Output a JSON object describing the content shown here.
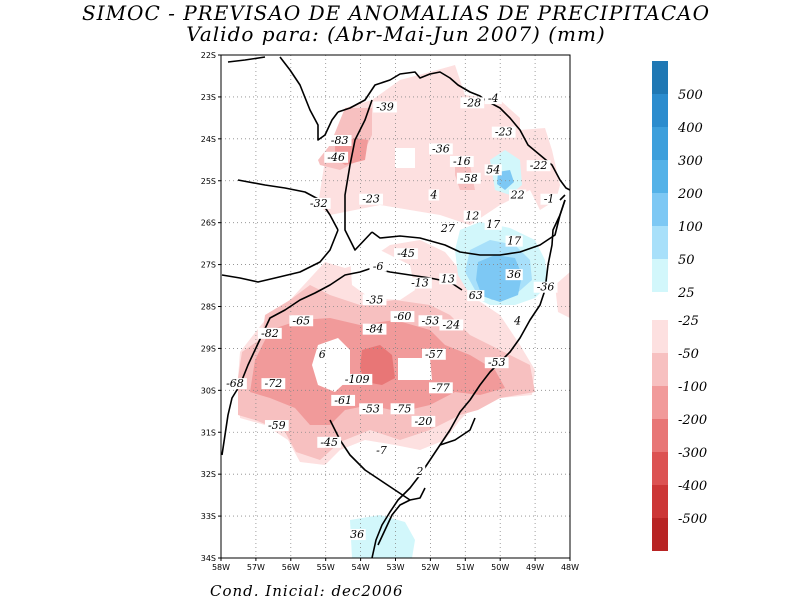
{
  "title_line1": "SIMOC - PREVISAO DE ANOMALIAS DE PRECIPITACAO",
  "title_line2": "Valido para: (Abr-Mai-Jun 2007) (mm)",
  "footer": "Cond. Inicial: dec2006",
  "axes": {
    "lon_labels": [
      "58W",
      "57W",
      "56W",
      "55W",
      "54W",
      "53W",
      "52W",
      "51W",
      "50W",
      "49W",
      "48W"
    ],
    "lat_labels": [
      "22S",
      "23S",
      "24S",
      "25S",
      "26S",
      "27S",
      "28S",
      "29S",
      "30S",
      "31S",
      "32S",
      "33S",
      "34S"
    ]
  },
  "contour_labels": [
    {
      "text": "-39",
      "lon": -53.3,
      "lat": -23.3
    },
    {
      "text": "-28",
      "lon": -50.8,
      "lat": -23.2
    },
    {
      "text": "-4",
      "lon": -50.2,
      "lat": -23.1
    },
    {
      "text": "-23",
      "lon": -49.9,
      "lat": -23.9
    },
    {
      "text": "-83",
      "lon": -54.6,
      "lat": -24.1
    },
    {
      "text": "-36",
      "lon": -51.7,
      "lat": -24.3
    },
    {
      "text": "-46",
      "lon": -54.7,
      "lat": -24.5
    },
    {
      "text": "-16",
      "lon": -51.1,
      "lat": -24.6
    },
    {
      "text": "54",
      "lon": -50.2,
      "lat": -24.8
    },
    {
      "text": "-22",
      "lon": -48.9,
      "lat": -24.7
    },
    {
      "text": "-58",
      "lon": -50.9,
      "lat": -25.0
    },
    {
      "text": "4",
      "lon": -51.9,
      "lat": -25.4
    },
    {
      "text": "22",
      "lon": -49.5,
      "lat": -25.4
    },
    {
      "text": "-32",
      "lon": -55.2,
      "lat": -25.6
    },
    {
      "text": "-23",
      "lon": -53.7,
      "lat": -25.5
    },
    {
      "text": "-1",
      "lon": -48.6,
      "lat": -25.5
    },
    {
      "text": "12",
      "lon": -50.8,
      "lat": -25.9
    },
    {
      "text": "17",
      "lon": -50.2,
      "lat": -26.1
    },
    {
      "text": "27",
      "lon": -51.5,
      "lat": -26.2
    },
    {
      "text": "17",
      "lon": -49.6,
      "lat": -26.5
    },
    {
      "text": "-45",
      "lon": -52.7,
      "lat": -26.8
    },
    {
      "text": "-6",
      "lon": -53.5,
      "lat": -27.1
    },
    {
      "text": "13",
      "lon": -51.5,
      "lat": -27.4
    },
    {
      "text": "-13",
      "lon": -52.3,
      "lat": -27.5
    },
    {
      "text": "36",
      "lon": -49.6,
      "lat": -27.3
    },
    {
      "text": "-36",
      "lon": -48.7,
      "lat": -27.6
    },
    {
      "text": "63",
      "lon": -50.7,
      "lat": -27.8
    },
    {
      "text": "-35",
      "lon": -53.6,
      "lat": -27.9
    },
    {
      "text": "-60",
      "lon": -52.8,
      "lat": -28.3
    },
    {
      "text": "-53",
      "lon": -52.0,
      "lat": -28.4
    },
    {
      "text": "-24",
      "lon": -51.4,
      "lat": -28.5
    },
    {
      "text": "4",
      "lon": -49.5,
      "lat": -28.4
    },
    {
      "text": "-65",
      "lon": -55.7,
      "lat": -28.4
    },
    {
      "text": "-84",
      "lon": -53.6,
      "lat": -28.6
    },
    {
      "text": "-82",
      "lon": -56.6,
      "lat": -28.7
    },
    {
      "text": "6",
      "lon": -55.1,
      "lat": -29.2
    },
    {
      "text": "-57",
      "lon": -51.9,
      "lat": -29.2
    },
    {
      "text": "-53",
      "lon": -50.1,
      "lat": -29.4
    },
    {
      "text": "-109",
      "lon": -54.1,
      "lat": -29.8
    },
    {
      "text": "-68",
      "lon": -57.6,
      "lat": -29.9
    },
    {
      "text": "-72",
      "lon": -56.5,
      "lat": -29.9
    },
    {
      "text": "-77",
      "lon": -51.7,
      "lat": -30.0
    },
    {
      "text": "-61",
      "lon": -54.5,
      "lat": -30.3
    },
    {
      "text": "-53",
      "lon": -53.7,
      "lat": -30.5
    },
    {
      "text": "-75",
      "lon": -52.8,
      "lat": -30.5
    },
    {
      "text": "-20",
      "lon": -52.2,
      "lat": -30.8
    },
    {
      "text": "-59",
      "lon": -56.4,
      "lat": -30.9
    },
    {
      "text": "-45",
      "lon": -54.9,
      "lat": -31.3
    },
    {
      "text": "-7",
      "lon": -53.4,
      "lat": -31.5
    },
    {
      "text": "2",
      "lon": -52.3,
      "lat": -32.0
    },
    {
      "text": "36",
      "lon": -54.1,
      "lat": -33.5
    }
  ],
  "legend": {
    "positive": [
      {
        "label": "500",
        "color": "#1f78b4"
      },
      {
        "label": "400",
        "color": "#2b8cce"
      },
      {
        "label": "300",
        "color": "#3d9fdc"
      },
      {
        "label": "200",
        "color": "#54b2e8"
      },
      {
        "label": "100",
        "color": "#7dc8f4"
      },
      {
        "label": "50",
        "color": "#a8e0fa"
      },
      {
        "label": "25",
        "color": "#d2f7fb"
      }
    ],
    "negative": [
      {
        "label": "-25",
        "color": "#fde0e0"
      },
      {
        "label": "-50",
        "color": "#f7c0c0"
      },
      {
        "label": "-100",
        "color": "#f19a9a"
      },
      {
        "label": "-200",
        "color": "#e87676"
      },
      {
        "label": "-300",
        "color": "#dc5252"
      },
      {
        "label": "-400",
        "color": "#cc3636"
      },
      {
        "label": "-500",
        "color": "#b82424"
      }
    ]
  }
}
